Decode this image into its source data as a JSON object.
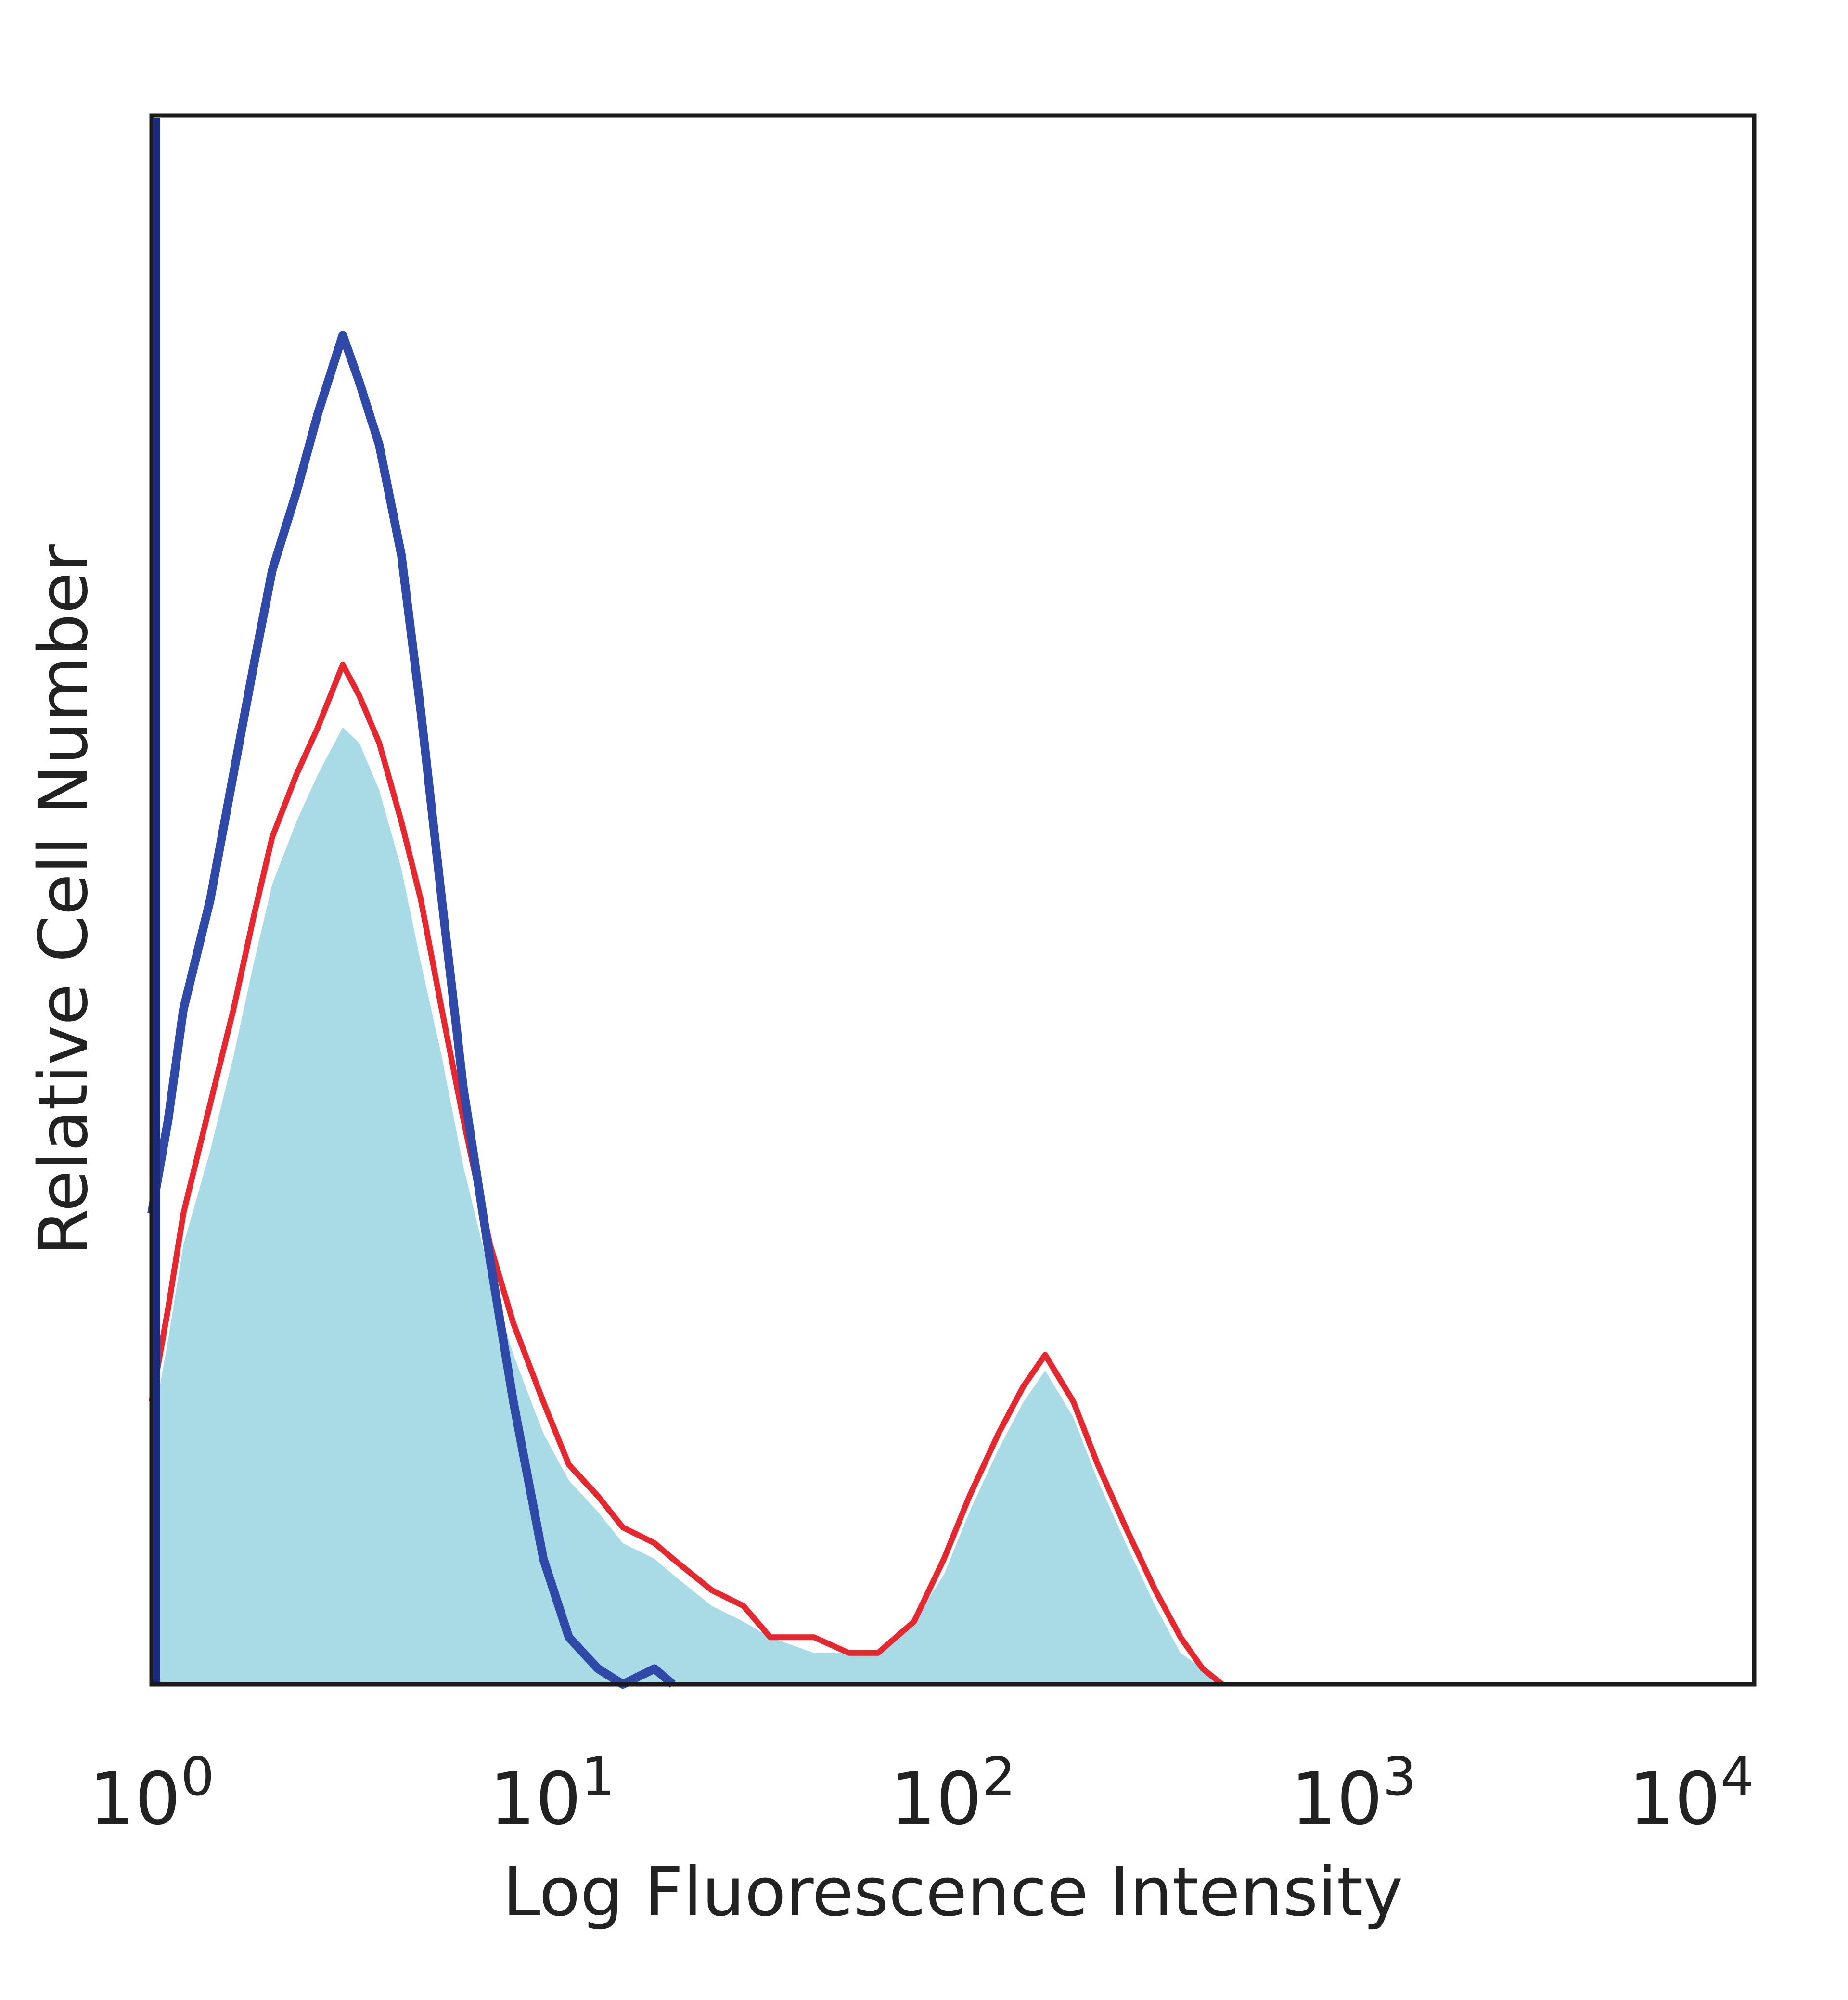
{
  "chart_data": {
    "type": "area",
    "title": "",
    "xlabel": "Log Fluorescence Intensity",
    "ylabel": "Relative Cell Number",
    "x_scale": "log",
    "xlim": [
      1,
      10000
    ],
    "ylim": [
      0,
      100
    ],
    "grid": false,
    "x_ticks": [
      {
        "value": 1,
        "base": "10",
        "exp": "0"
      },
      {
        "value": 10,
        "base": "10",
        "exp": "1"
      },
      {
        "value": 100,
        "base": "10",
        "exp": "2"
      },
      {
        "value": 1000,
        "base": "10",
        "exp": "3"
      },
      {
        "value": 10000,
        "base": "10",
        "exp": "4"
      }
    ],
    "series": [
      {
        "color": "#a8dbe6",
        "style": "filled",
        "x": [
          1.0,
          1.1,
          1.2,
          1.4,
          1.6,
          1.8,
          2.0,
          2.3,
          2.6,
          3.0,
          3.3,
          3.7,
          4.2,
          4.7,
          5.3,
          6.0,
          7.0,
          8.0,
          9.5,
          11,
          13,
          15,
          18,
          20,
          25,
          30,
          35,
          45,
          55,
          65,
          80,
          95,
          110,
          130,
          150,
          170,
          200,
          230,
          270,
          320,
          370,
          420,
          470
        ],
        "values": [
          16,
          22,
          28,
          34,
          40,
          46,
          51,
          55,
          58,
          61,
          60,
          57,
          52,
          46,
          40,
          33,
          26,
          21,
          16,
          13,
          11,
          9,
          8,
          7,
          5,
          4,
          3,
          2,
          2,
          2,
          4,
          7,
          11,
          15,
          18,
          20,
          17,
          13,
          9,
          5,
          2,
          1,
          0
        ]
      },
      {
        "color": "#e8262d",
        "style": "line",
        "x": [
          1.0,
          1.1,
          1.2,
          1.4,
          1.6,
          1.8,
          2.0,
          2.3,
          2.6,
          3.0,
          3.3,
          3.7,
          4.2,
          4.7,
          5.3,
          6.0,
          7.0,
          8.0,
          9.5,
          11,
          13,
          15,
          18,
          20,
          25,
          30,
          35,
          45,
          55,
          65,
          80,
          95,
          110,
          130,
          150,
          170,
          200,
          230,
          270,
          320,
          370,
          420,
          470
        ],
        "values": [
          18,
          24,
          30,
          37,
          43,
          49,
          54,
          58,
          61,
          65,
          63,
          60,
          55,
          50,
          43,
          36,
          28,
          23,
          18,
          14,
          12,
          10,
          9,
          8,
          6,
          5,
          3,
          3,
          2,
          2,
          4,
          8,
          12,
          16,
          19,
          21,
          18,
          14,
          10,
          6,
          3,
          1,
          0
        ]
      },
      {
        "color": "#2e49a8",
        "style": "line",
        "x": [
          1.0,
          1.1,
          1.2,
          1.4,
          1.6,
          1.8,
          2.0,
          2.3,
          2.6,
          3.0,
          3.3,
          3.7,
          4.2,
          4.7,
          5.3,
          6.0,
          7.0,
          8.0,
          9.5,
          11,
          13,
          15,
          18,
          20
        ],
        "values": [
          30,
          36,
          43,
          50,
          58,
          65,
          71,
          76,
          81,
          86,
          83,
          79,
          72,
          62,
          50,
          38,
          27,
          18,
          8,
          3,
          1,
          0,
          1,
          0
        ]
      }
    ]
  }
}
